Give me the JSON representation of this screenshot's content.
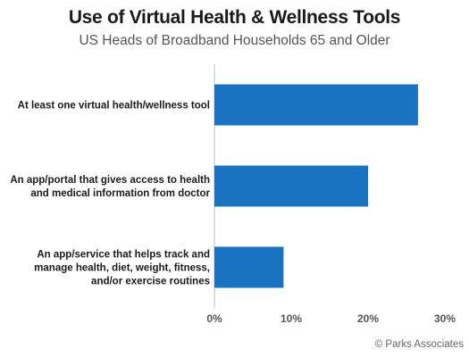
{
  "title": "Use of Virtual Health & Wellness Tools",
  "subtitle": "US Heads of Broadband Households 65 and Older",
  "credit": "© Parks Associates",
  "colors": {
    "bar": "#1a73c1",
    "axis": "#bbbbbb",
    "grid": "#e6e6e6"
  },
  "chart_data": {
    "type": "bar",
    "orientation": "horizontal",
    "title": "Use of Virtual Health & Wellness Tools",
    "subtitle": "US Heads of Broadband Households 65 and Older",
    "categories": [
      [
        "At least one virtual health/wellness tool"
      ],
      [
        "An app/portal that gives access to health",
        "and medical information from doctor"
      ],
      [
        "An app/service that helps track and",
        "manage health, diet, weight, fitness,",
        "and/or exercise routines"
      ]
    ],
    "values": [
      26.5,
      20,
      9
    ],
    "xlim": [
      0,
      30
    ],
    "xticks": [
      0,
      10,
      20,
      30
    ],
    "xtick_labels": [
      "0%",
      "10%",
      "20%",
      "30%"
    ],
    "grid": false,
    "legend": "none"
  }
}
